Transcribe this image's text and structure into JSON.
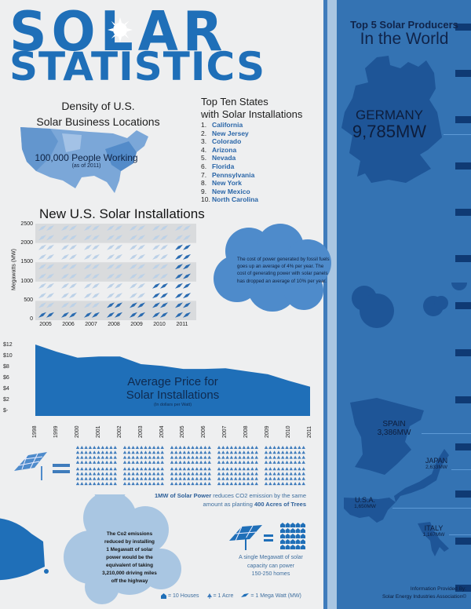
{
  "title": {
    "line1": "SOLAR",
    "line2": "STATISTICS"
  },
  "density": {
    "title_line1": "Density of U.S.",
    "title_line2": "Solar Business Locations",
    "caption": "100,000 People Working",
    "sub": "(as of 2011)"
  },
  "top_ten": {
    "title_line1": "Top Ten States",
    "title_line2": "with Solar Installations",
    "states": [
      {
        "num": "1.",
        "name": "California"
      },
      {
        "num": "2.",
        "name": "New Jersey"
      },
      {
        "num": "3.",
        "name": "Colorado"
      },
      {
        "num": "4.",
        "name": "Arizona"
      },
      {
        "num": "5.",
        "name": "Nevada"
      },
      {
        "num": "6.",
        "name": "Florida"
      },
      {
        "num": "7.",
        "name": "Pennsylvania"
      },
      {
        "num": "8.",
        "name": "New York"
      },
      {
        "num": "9.",
        "name": "New Mexico"
      },
      {
        "num": "10.",
        "name": "North Carolina"
      }
    ]
  },
  "cost_cloud": {
    "text": "The cost of power generated by fossil fuels goes up an average of 4% per year.  The cost of generating power with solar panels has dropped an average of 10% per year."
  },
  "top_producers": {
    "title_line1": "Top 5 Solar Producers",
    "title_line2": "In the World",
    "countries": [
      {
        "name": "GERMANY",
        "value": "9,785MW"
      },
      {
        "name": "SPAIN",
        "value": "3,386MW"
      },
      {
        "name": "JAPAN",
        "value": "2,633MW"
      },
      {
        "name": "U.S.A.",
        "value": "1,650MW"
      },
      {
        "name": "ITALY",
        "value": "1,167MW"
      }
    ]
  },
  "trees": {
    "caption_bold1": "1MW of Solar Power",
    "caption_mid": " reduces CO2 emission by the same amount as planting ",
    "caption_bold2": "400 Acres of Trees"
  },
  "car_cloud": {
    "lines": [
      "The Co2 emissions",
      "reduced by installing",
      "1 Megawatt of solar",
      "power would be the",
      "equivalent of taking",
      "3,210,000 driving miles",
      "off the highway"
    ]
  },
  "homes": {
    "lines": [
      "A single Megawatt of solar",
      "capacity can power",
      "150-250 homes"
    ]
  },
  "legend": {
    "house": "= 10 Houses",
    "tree": "= 1 Acre",
    "panel": "= 1 Mega Watt (MW)"
  },
  "source": {
    "line1": "Information Provided By:",
    "line2": "Solar Energy Industries Association©"
  },
  "colors": {
    "brand_blue": "#1f6fb8",
    "panel_blue": "#3473b3",
    "dark_navy": "#0f3a74",
    "cloud_light": "#a9c6e2",
    "cloud_mid": "#5b93cf"
  },
  "chart_data": [
    {
      "type": "bar",
      "title": "New U.S. Solar Installations",
      "xlabel": "",
      "ylabel": "Megawatts (MW)",
      "categories": [
        "2005",
        "2006",
        "2007",
        "2008",
        "2009",
        "2010",
        "2011"
      ],
      "values": [
        79,
        105,
        160,
        290,
        435,
        890,
        1800
      ],
      "ylim": [
        0,
        2500
      ],
      "yticks": [
        0,
        500,
        1000,
        1500,
        2000,
        2500
      ],
      "grid": "alternating horizontal bands"
    },
    {
      "type": "area",
      "title": "Average Price for Solar Installations",
      "subtitle": "(In dollars per Watt)",
      "xlabel": "",
      "ylabel": "",
      "categories": [
        "1998",
        "1999",
        "2000",
        "2001",
        "2002",
        "2003",
        "2004",
        "2005",
        "2006",
        "2007",
        "2008",
        "2009",
        "2010",
        "2011"
      ],
      "values": [
        12.0,
        10.8,
        9.8,
        10.0,
        10.0,
        8.7,
        8.4,
        7.9,
        7.9,
        8.0,
        7.5,
        7.0,
        5.9,
        4.9
      ],
      "ytick_labels": [
        "$-",
        "$2",
        "$4",
        "$6",
        "$8",
        "$10",
        "$12"
      ],
      "ylim": [
        0,
        12
      ]
    }
  ]
}
